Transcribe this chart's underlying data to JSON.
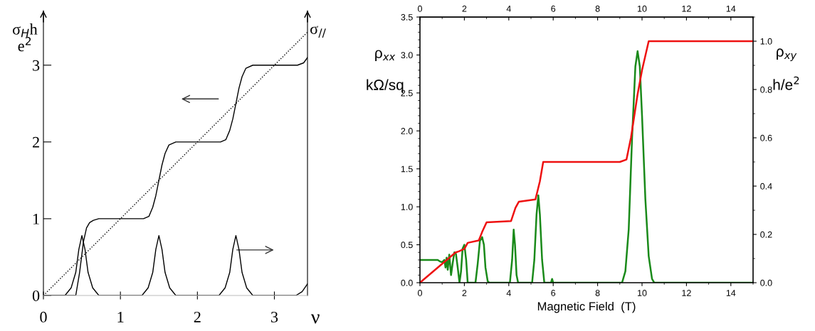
{
  "chart_data": [
    {
      "type": "line",
      "xlabel": "ν",
      "ylabel": "σ$_{H}$h\ne$^{2}$",
      "y2label": "σ$_{//}$",
      "xlim": [
        0,
        3.43
      ],
      "ylim": [
        0,
        3.71
      ],
      "xticks": [
        0,
        1,
        2,
        3
      ],
      "yticks": [
        0,
        1,
        2,
        3
      ],
      "grid": false,
      "legend": false,
      "series": [
        {
          "color": "#000000",
          "line_style": "solid",
          "x": [
            0,
            0.42,
            0.47,
            0.52,
            0.56,
            0.6,
            0.65,
            0.72,
            1.3,
            1.37,
            1.42,
            1.46,
            1.5,
            1.54,
            1.58,
            1.63,
            1.72,
            2.3,
            2.37,
            2.42,
            2.46,
            2.5,
            2.54,
            2.58,
            2.63,
            2.72,
            3.3,
            3.38,
            3.43
          ],
          "values": [
            0,
            0,
            0.3,
            0.7,
            0.88,
            0.95,
            0.98,
            1.0,
            1.0,
            1.03,
            1.15,
            1.3,
            1.5,
            1.7,
            1.85,
            1.96,
            2.0,
            2.0,
            2.03,
            2.15,
            2.3,
            2.5,
            2.7,
            2.85,
            2.96,
            3.0,
            3.0,
            3.03,
            3.1
          ]
        },
        {
          "color": "#000000",
          "line_style": "solid",
          "x": [
            0,
            0.28,
            0.36,
            0.42,
            0.46,
            0.5,
            0.54,
            0.58,
            0.64,
            0.72,
            1.28,
            1.36,
            1.42,
            1.46,
            1.5,
            1.54,
            1.58,
            1.64,
            1.72,
            2.28,
            2.36,
            2.42,
            2.46,
            2.5,
            2.54,
            2.58,
            2.64,
            2.72,
            3.28,
            3.36,
            3.43
          ],
          "values": [
            0,
            0,
            0.1,
            0.3,
            0.6,
            0.78,
            0.6,
            0.3,
            0.1,
            0,
            0,
            0.1,
            0.3,
            0.6,
            0.78,
            0.6,
            0.3,
            0.1,
            0,
            0,
            0.1,
            0.3,
            0.6,
            0.78,
            0.6,
            0.3,
            0.1,
            0,
            0,
            0.05,
            0.15
          ]
        },
        {
          "color": "#000000",
          "line_style": "dotted",
          "x": [
            0,
            3.43
          ],
          "values": [
            0,
            3.43
          ]
        }
      ]
    },
    {
      "type": "line",
      "xlabel": "Magnetic Field  (T)",
      "ylabel": "ρ$_{xx}$\n\nkΩ/sq",
      "y2label": "ρ$_{xy}$\n\nh/e$^{2}$",
      "xlim": [
        0,
        15
      ],
      "xticks": [
        0,
        2,
        4,
        6,
        8,
        10,
        12,
        14
      ],
      "x2lim": [
        0,
        15
      ],
      "x2ticks": [
        0,
        2,
        4,
        6,
        8,
        10,
        12,
        14
      ],
      "ylim": [
        0,
        3.5
      ],
      "yticks": [
        {
          "value": 0,
          "label": "0.0"
        },
        0.5,
        {
          "value": 1,
          "label": "1.0"
        },
        1.5,
        {
          "value": 2,
          "label": "2.0"
        },
        2.5,
        {
          "value": 3,
          "label": "3.0"
        },
        3.5
      ],
      "y2lim": [
        0,
        1.1
      ],
      "y2ticks": [
        {
          "value": 0,
          "label": "0.0"
        },
        0.2,
        0.4,
        0.6,
        0.8,
        {
          "value": 1,
          "label": "1.0"
        }
      ],
      "grid": false,
      "legend": false,
      "series": [
        {
          "color": "#1a8a1a",
          "x": [
            0,
            0.8,
            0.9,
            1.0,
            1.1,
            1.15,
            1.2,
            1.25,
            1.32,
            1.4,
            1.47,
            1.55,
            1.62,
            1.7,
            1.78,
            1.85,
            1.92,
            2.0,
            2.08,
            2.15,
            2.22,
            2.5,
            2.6,
            2.7,
            2.8,
            2.88,
            2.95,
            3.05,
            3.12,
            4.05,
            4.15,
            4.22,
            4.28,
            4.35,
            4.42,
            5.05,
            5.15,
            5.25,
            5.33,
            5.4,
            5.5,
            5.6,
            5.9,
            5.95,
            6.0,
            9.1,
            9.25,
            9.4,
            9.55,
            9.7,
            9.8,
            9.9,
            10.0,
            10.15,
            10.3,
            10.45,
            10.55,
            15
          ],
          "values": [
            0.3,
            0.3,
            0.28,
            0.27,
            0.3,
            0.2,
            0.33,
            0.17,
            0.37,
            0.1,
            0.25,
            0.4,
            0.38,
            0.2,
            0.0,
            0.15,
            0.45,
            0.5,
            0.3,
            0.0,
            0.0,
            0.0,
            0.25,
            0.55,
            0.6,
            0.5,
            0.2,
            0.02,
            0.0,
            0.0,
            0.3,
            0.7,
            0.5,
            0.1,
            0.0,
            0.0,
            0.3,
            0.9,
            1.15,
            0.9,
            0.3,
            0.0,
            0.0,
            0.05,
            0.0,
            0.0,
            0.15,
            0.7,
            1.9,
            2.85,
            3.05,
            2.85,
            2.2,
            1.1,
            0.35,
            0.05,
            0.0,
            0.0
          ]
        },
        {
          "color": "#ee1111",
          "axis": "y2",
          "x": [
            0,
            1.6,
            1.75,
            2.0,
            2.15,
            2.65,
            2.8,
            3.0,
            4.1,
            4.3,
            4.45,
            5.2,
            5.4,
            5.55,
            9.0,
            9.3,
            9.5,
            9.8,
            10.0,
            10.3,
            15
          ],
          "values": [
            0,
            0.125,
            0.13,
            0.14,
            0.165,
            0.175,
            0.21,
            0.25,
            0.255,
            0.31,
            0.335,
            0.345,
            0.42,
            0.5,
            0.5,
            0.51,
            0.6,
            0.78,
            0.88,
            1.0,
            1.0
          ]
        }
      ]
    }
  ]
}
